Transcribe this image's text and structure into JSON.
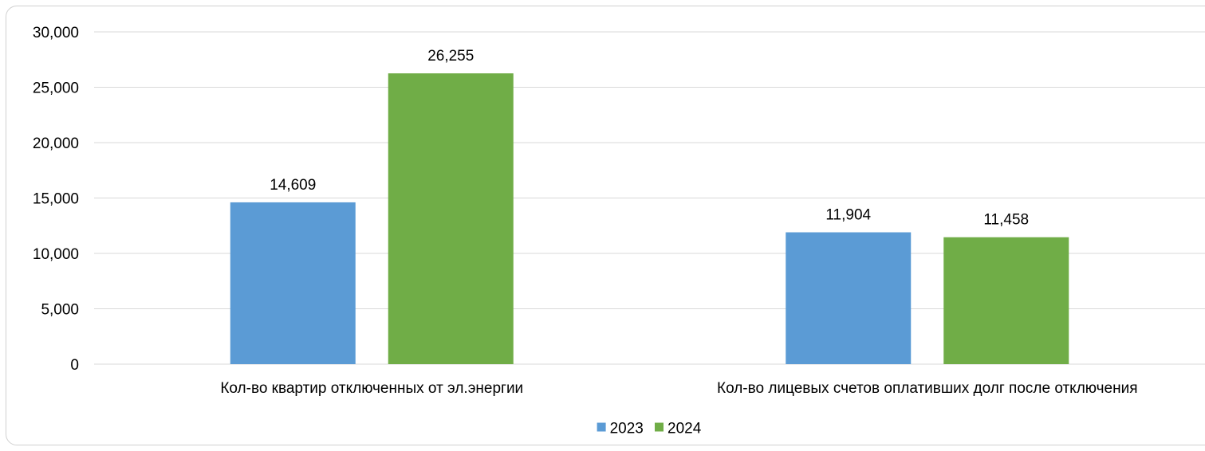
{
  "chart_data": {
    "type": "bar",
    "categories": [
      "Кол-во квартир отключенных от эл.энергии",
      "Кол-во лицевых счетов  оплативших долг после отключения"
    ],
    "series": [
      {
        "name": "2023",
        "values": [
          14609,
          11904
        ],
        "color": "#5b9bd5"
      },
      {
        "name": "2024",
        "values": [
          26255,
          11458
        ],
        "color": "#70ad47"
      }
    ],
    "ylim": [
      0,
      30000
    ],
    "yticks": [
      0,
      5000,
      10000,
      15000,
      20000,
      25000,
      30000
    ],
    "data_labels": true,
    "grid": true,
    "gridline_color": "#d9d9d9",
    "legend_position": "bottom",
    "title": "",
    "xlabel": "",
    "ylabel": ""
  }
}
